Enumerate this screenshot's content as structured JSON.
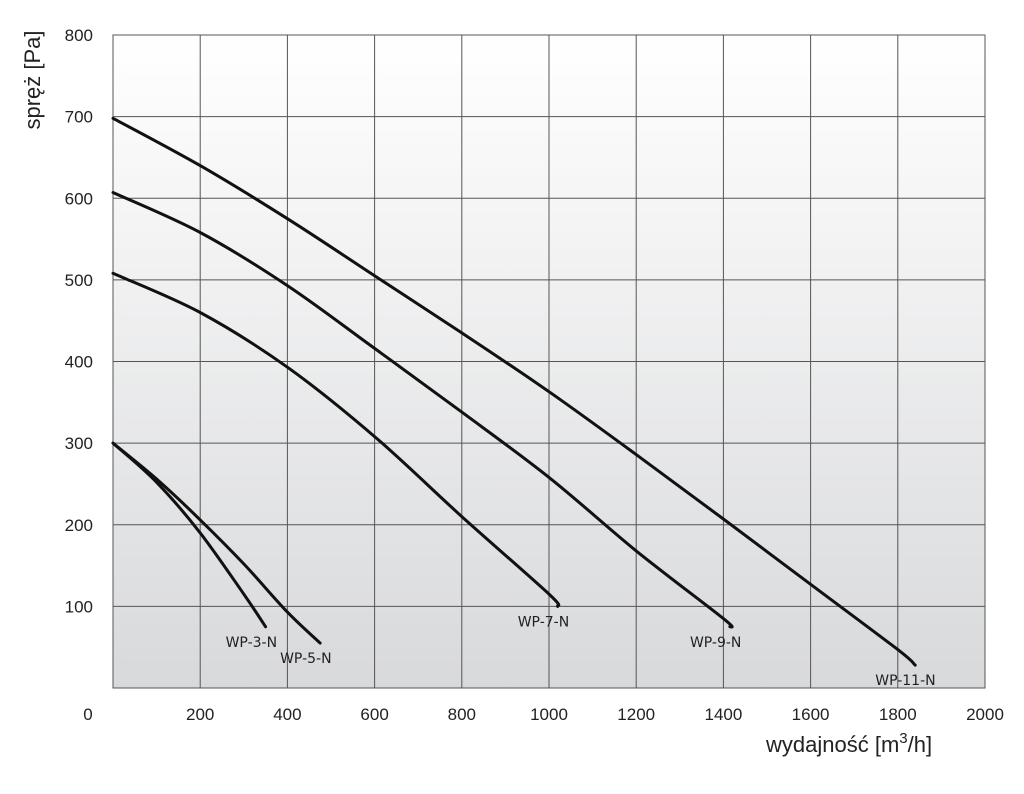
{
  "chart_data": {
    "type": "line",
    "title": "",
    "xlabel": "wydajność [m",
    "xlabel_sup": "3",
    "xlabel_tail": "/h]",
    "ylabel": "spręż [Pa]",
    "xlim": [
      0,
      2000
    ],
    "ylim": [
      0,
      800
    ],
    "origin_label": "0",
    "x_ticks": [
      {
        "value": 200,
        "label": "200"
      },
      {
        "value": 400,
        "label": "400"
      },
      {
        "value": 600,
        "label": "600"
      },
      {
        "value": 800,
        "label": "800"
      },
      {
        "value": 1000,
        "label": "1000"
      },
      {
        "value": 1200,
        "label": "1200"
      },
      {
        "value": 1400,
        "label": "1400"
      },
      {
        "value": 1600,
        "label": "1600"
      },
      {
        "value": 1800,
        "label": "1800"
      },
      {
        "value": 2000,
        "label": "2000"
      }
    ],
    "y_ticks": [
      {
        "value": 100,
        "label": "100"
      },
      {
        "value": 200,
        "label": "200"
      },
      {
        "value": 300,
        "label": "300"
      },
      {
        "value": 400,
        "label": "400"
      },
      {
        "value": 500,
        "label": "500"
      },
      {
        "value": 600,
        "label": "600"
      },
      {
        "value": 700,
        "label": "700"
      },
      {
        "value": 800,
        "label": "800"
      }
    ],
    "grid": true,
    "colors": {
      "curve": "#111111",
      "grid": "#555555",
      "bg_top": "#ffffff",
      "bg_bottom": "#d8d9db"
    },
    "series": [
      {
        "name": "WP-3-N",
        "x": [
          0,
          100,
          200,
          300,
          350
        ],
        "y": [
          300,
          252,
          190,
          115,
          75
        ]
      },
      {
        "name": "WP-5-N",
        "x": [
          0,
          100,
          200,
          300,
          400,
          475
        ],
        "y": [
          300,
          256,
          206,
          152,
          93,
          55
        ]
      },
      {
        "name": "WP-7-N",
        "x": [
          0,
          200,
          400,
          600,
          800,
          1000,
          1020
        ],
        "y": [
          508,
          460,
          393,
          308,
          210,
          115,
          100
        ]
      },
      {
        "name": "WP-9-N",
        "x": [
          0,
          200,
          400,
          600,
          800,
          1000,
          1200,
          1400,
          1415
        ],
        "y": [
          607,
          558,
          493,
          416,
          338,
          258,
          168,
          85,
          75
        ]
      },
      {
        "name": "WP-11-N",
        "x": [
          0,
          200,
          400,
          600,
          800,
          1000,
          1200,
          1400,
          1600,
          1800,
          1840
        ],
        "y": [
          698,
          640,
          575,
          505,
          435,
          363,
          286,
          207,
          127,
          47,
          28
        ]
      }
    ]
  }
}
